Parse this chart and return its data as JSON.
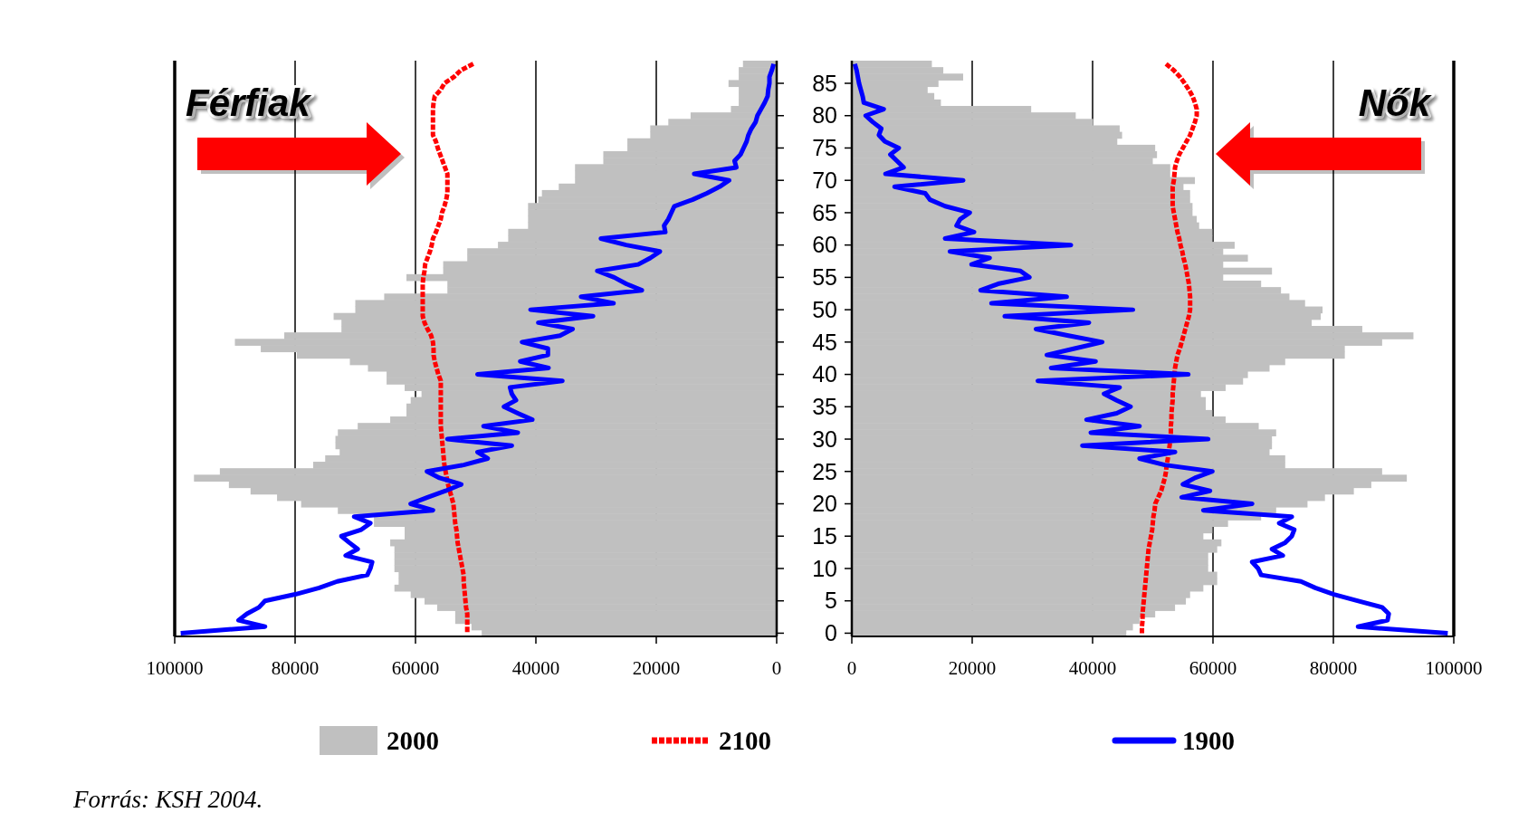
{
  "chart_data": [
    {
      "type": "bar",
      "orientation": "horizontal",
      "title": "Férfiak",
      "categories": [
        null,
        null,
        null,
        "85",
        null,
        null,
        null,
        null,
        "80",
        null,
        null,
        null,
        null,
        "75",
        null,
        null,
        null,
        null,
        "70",
        null,
        null,
        null,
        null,
        "65",
        null,
        null,
        null,
        null,
        "60",
        null,
        null,
        null,
        null,
        "55",
        null,
        null,
        null,
        null,
        "50",
        null,
        null,
        null,
        null,
        "45",
        null,
        null,
        null,
        null,
        "40",
        null,
        null,
        null,
        null,
        "35",
        null,
        null,
        null,
        null,
        "30",
        null,
        null,
        null,
        null,
        "25",
        null,
        null,
        null,
        null,
        "20",
        null,
        null,
        null,
        null,
        "15",
        null,
        null,
        null,
        null,
        "10",
        null,
        null,
        null,
        null,
        "5",
        null,
        null,
        null,
        null,
        "0"
      ],
      "xlim": [
        100000,
        0
      ],
      "xticks": [
        100000,
        80000,
        60000,
        40000,
        20000,
        0
      ],
      "grid": "x",
      "tick_labels": "x",
      "legend": "bottom",
      "annotations": [
        "Forrás: KSH 2004."
      ],
      "series": [
        {
          "name": "2000",
          "color": "#c0c0c0",
          "values": [
            5600,
            6300,
            6300,
            8000,
            6300,
            6300,
            6300,
            7600,
            14300,
            18000,
            21000,
            21000,
            24800,
            24800,
            28800,
            28800,
            33500,
            33500,
            33500,
            36200,
            39000,
            39600,
            41300,
            41300,
            41300,
            41300,
            44600,
            44600,
            46300,
            51400,
            51400,
            55400,
            55400,
            61500,
            54700,
            54700,
            65200,
            70000,
            70000,
            73600,
            72300,
            72300,
            81800,
            90000,
            85700,
            79700,
            70900,
            67900,
            64800,
            64800,
            61800,
            59000,
            60800,
            61500,
            61500,
            64200,
            69600,
            72900,
            73300,
            73300,
            72600,
            75000,
            77000,
            92500,
            96800,
            91000,
            87400,
            83000,
            79000,
            72900,
            66900,
            66900,
            61800,
            61800,
            64200,
            63500,
            63500,
            63500,
            63500,
            62800,
            62800,
            63500,
            60800,
            58500,
            56400,
            53400,
            53400,
            50700,
            49000
          ]
        },
        {
          "name": "2100",
          "type": "line",
          "color": "#ff0000",
          "line_style": "dotted",
          "values": [
            50400,
            52500,
            53600,
            55200,
            55800,
            56800,
            57000,
            57100,
            57100,
            57100,
            57100,
            57100,
            56600,
            56300,
            55900,
            55500,
            55100,
            54700,
            54700,
            54700,
            54700,
            54900,
            55200,
            55600,
            55800,
            56200,
            56600,
            57100,
            57300,
            57600,
            58000,
            58400,
            58500,
            58700,
            58800,
            58800,
            58800,
            58800,
            58800,
            58800,
            58500,
            58000,
            57400,
            57100,
            57000,
            57000,
            56800,
            56500,
            56200,
            55800,
            55800,
            55800,
            55800,
            55800,
            55800,
            55800,
            55800,
            55700,
            55600,
            55500,
            55400,
            55300,
            55200,
            55000,
            54800,
            54600,
            54300,
            54000,
            53700,
            53600,
            53500,
            53400,
            53200,
            53100,
            53000,
            52800,
            52600,
            52400,
            52200,
            52000,
            52000,
            51900,
            51800,
            51700,
            51600,
            51400,
            51400,
            51400,
            51400
          ]
        },
        {
          "name": "1900",
          "type": "line",
          "color": "#0000ff",
          "line_style": "solid",
          "values": [
            500,
            800,
            1200,
            1200,
            1400,
            1500,
            2000,
            2600,
            3200,
            3500,
            4200,
            4700,
            5000,
            5500,
            6000,
            7000,
            6700,
            13700,
            7900,
            9500,
            11600,
            14000,
            17000,
            17500,
            18000,
            18700,
            18500,
            29200,
            25000,
            19400,
            21000,
            23000,
            29800,
            27000,
            25000,
            22400,
            32500,
            27100,
            40900,
            30500,
            39600,
            33900,
            36000,
            42300,
            38000,
            38000,
            42600,
            37900,
            49700,
            35600,
            44300,
            44000,
            43300,
            45300,
            43000,
            40600,
            48700,
            43000,
            54700,
            44000,
            49700,
            48000,
            52000,
            58100,
            56000,
            52400,
            55000,
            58000,
            60800,
            57100,
            70200,
            67500,
            69000,
            72300,
            71000,
            69600,
            71600,
            67200,
            67500,
            68000,
            73000,
            76000,
            80000,
            85000,
            86000,
            88000,
            89400,
            85000,
            99000
          ]
        }
      ]
    },
    {
      "type": "bar",
      "orientation": "horizontal",
      "title": "Nők",
      "categories": [
        null,
        null,
        null,
        "85",
        null,
        null,
        null,
        null,
        "80",
        null,
        null,
        null,
        null,
        "75",
        null,
        null,
        null,
        null,
        "70",
        null,
        null,
        null,
        null,
        "65",
        null,
        null,
        null,
        null,
        "60",
        null,
        null,
        null,
        null,
        "55",
        null,
        null,
        null,
        null,
        "50",
        null,
        null,
        null,
        null,
        "45",
        null,
        null,
        null,
        null,
        "40",
        null,
        null,
        null,
        null,
        "35",
        null,
        null,
        null,
        null,
        "30",
        null,
        null,
        null,
        null,
        "25",
        null,
        null,
        null,
        null,
        "20",
        null,
        null,
        null,
        null,
        "15",
        null,
        null,
        null,
        null,
        "10",
        null,
        null,
        null,
        null,
        "5",
        null,
        null,
        null,
        null,
        "0"
      ],
      "xlim": [
        0,
        100000
      ],
      "xticks": [
        0,
        20000,
        40000,
        60000,
        80000,
        100000
      ],
      "grid": "x",
      "series": [
        {
          "color": "#c0c0c0",
          "values": [
            13300,
            15200,
            18500,
            14400,
            12600,
            13700,
            14800,
            29800,
            37200,
            40100,
            44500,
            44900,
            44100,
            50400,
            50700,
            50000,
            52900,
            52900,
            57000,
            55100,
            56200,
            56200,
            56600,
            56600,
            57300,
            57700,
            59900,
            59900,
            63600,
            61700,
            65800,
            61700,
            69800,
            61700,
            68000,
            71300,
            72700,
            75300,
            78200,
            77900,
            76400,
            84800,
            93300,
            88100,
            81900,
            81900,
            72000,
            69400,
            65800,
            65000,
            62100,
            58000,
            58800,
            58800,
            59900,
            62100,
            67600,
            70500,
            69800,
            69800,
            69400,
            72000,
            72000,
            88100,
            92200,
            86300,
            83400,
            78600,
            75700,
            70500,
            68000,
            62500,
            59900,
            58400,
            61400,
            60700,
            59200,
            59200,
            59200,
            60700,
            60700,
            58400,
            56200,
            55500,
            53700,
            50400,
            47800,
            46700,
            45600
          ]
        },
        {
          "type": "line",
          "color": "#ff0000",
          "line_style": "dotted",
          "values": [
            52200,
            53500,
            54500,
            55300,
            56000,
            56600,
            57000,
            57300,
            57300,
            57000,
            56600,
            56200,
            55600,
            55000,
            54400,
            54000,
            53700,
            53600,
            53500,
            53300,
            53300,
            53300,
            53300,
            53500,
            53700,
            53900,
            54100,
            54400,
            54600,
            54900,
            55100,
            55400,
            55600,
            55800,
            56000,
            56100,
            56200,
            56200,
            56200,
            56000,
            55700,
            55400,
            55100,
            54800,
            54500,
            54100,
            53900,
            53700,
            53600,
            53500,
            53400,
            53300,
            53300,
            53200,
            53100,
            53100,
            53000,
            53000,
            52900,
            52800,
            52600,
            52500,
            52300,
            52200,
            52000,
            51700,
            51400,
            50900,
            50400,
            50300,
            50100,
            50000,
            49900,
            49700,
            49500,
            49300,
            49200,
            49100,
            49000,
            48900,
            48800,
            48700,
            48600,
            48500,
            48400,
            48300,
            48300,
            48200,
            48200
          ]
        },
        {
          "type": "line",
          "color": "#0000ff",
          "line_style": "solid",
          "values": [
            500,
            800,
            1000,
            1200,
            1500,
            1800,
            2000,
            5300,
            2300,
            3500,
            4900,
            4500,
            5500,
            7800,
            6400,
            7500,
            8600,
            5600,
            18500,
            7100,
            12200,
            13000,
            15500,
            19600,
            18000,
            17400,
            20300,
            15500,
            36400,
            16300,
            22900,
            19900,
            28000,
            29500,
            24300,
            21400,
            35700,
            23200,
            46700,
            25400,
            39400,
            30600,
            36000,
            41600,
            37000,
            32400,
            40500,
            33100,
            55900,
            30900,
            44500,
            41900,
            44000,
            46300,
            44000,
            39000,
            47800,
            39700,
            59200,
            38300,
            53700,
            47800,
            52000,
            59900,
            57000,
            55000,
            59500,
            54800,
            66500,
            58400,
            73100,
            71000,
            73500,
            73100,
            72000,
            69800,
            71600,
            66500,
            67500,
            68000,
            74600,
            77000,
            80100,
            84000,
            88100,
            89200,
            89000,
            84100,
            99000
          ]
        }
      ]
    }
  ]
}
